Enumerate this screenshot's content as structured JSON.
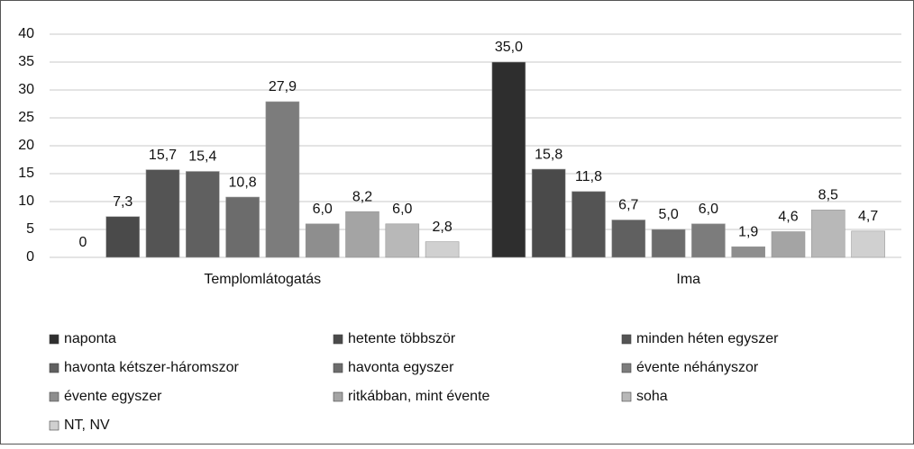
{
  "chart_data": {
    "type": "bar",
    "categories": [
      "Templomlátogatás",
      "Ima"
    ],
    "series": [
      {
        "name": "naponta",
        "color": "#2e2e2e",
        "values": [
          0,
          35.0
        ],
        "value_labels": [
          "0",
          "35,0"
        ]
      },
      {
        "name": "hetente többször",
        "color": "#4a4a4a",
        "values": [
          7.3,
          15.8
        ],
        "value_labels": [
          "7,3",
          "15,8"
        ]
      },
      {
        "name": "minden héten egyszer",
        "color": "#545454",
        "values": [
          15.7,
          11.8
        ],
        "value_labels": [
          "15,7",
          "11,8"
        ]
      },
      {
        "name": "havonta kétszer-háromszor",
        "color": "#606060",
        "values": [
          15.4,
          6.7
        ],
        "value_labels": [
          "15,4",
          "6,7"
        ]
      },
      {
        "name": "havonta egyszer",
        "color": "#6c6c6c",
        "values": [
          10.8,
          5.0
        ],
        "value_labels": [
          "10,8",
          "5,0"
        ]
      },
      {
        "name": "évente néhányszor",
        "color": "#7c7c7c",
        "values": [
          27.9,
          6.0
        ],
        "value_labels": [
          "27,9",
          "6,0"
        ]
      },
      {
        "name": "évente egyszer",
        "color": "#8e8e8e",
        "values": [
          6.0,
          1.9
        ],
        "value_labels": [
          "6,0",
          "1,9"
        ]
      },
      {
        "name": "ritkábban, mint évente",
        "color": "#a4a4a4",
        "values": [
          8.2,
          4.6
        ],
        "value_labels": [
          "8,2",
          "4,6"
        ]
      },
      {
        "name": "soha",
        "color": "#b8b8b8",
        "values": [
          6.0,
          8.5
        ],
        "value_labels": [
          "6,0",
          "8,5"
        ]
      },
      {
        "name": "NT, NV",
        "color": "#d0d0d0",
        "values": [
          2.8,
          4.7
        ],
        "value_labels": [
          "2,8",
          "4,7"
        ]
      }
    ],
    "ylim": [
      0,
      40
    ],
    "yticks": [
      0,
      5,
      10,
      15,
      20,
      25,
      30,
      35,
      40
    ],
    "grid": true,
    "legend": "bottom"
  }
}
